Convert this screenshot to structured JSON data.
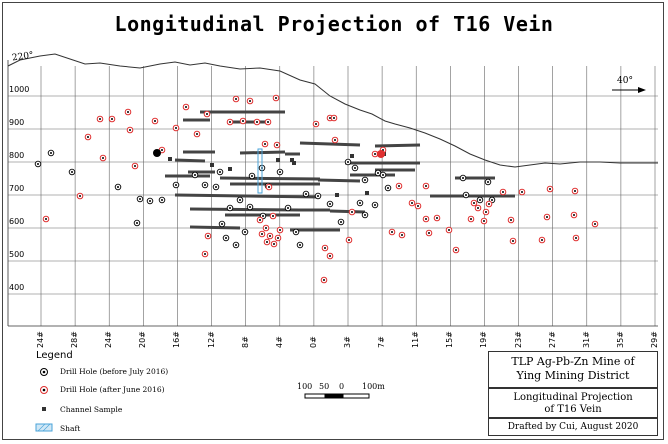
{
  "title": "Longitudinal Projection of T16 Vein",
  "orientation_label": "220°",
  "north_arrow_label": "40°",
  "elevations": [
    "1000",
    "900",
    "800",
    "700",
    "600",
    "500",
    "400"
  ],
  "sections": [
    "24#",
    "28#",
    "24#",
    "20#",
    "16#",
    "12#",
    "8#",
    "4#",
    "0#",
    "3#",
    "7#",
    "11#",
    "15#",
    "19#",
    "23#",
    "27#",
    "31#",
    "35#",
    "29#"
  ],
  "legend": {
    "title": "Legend",
    "items": [
      "Drill Hole (before July 2016)",
      "Drill Hole (after June 2016)",
      "Channel Sample",
      "Shaft"
    ]
  },
  "scale": {
    "labels": [
      "100",
      "50",
      "0",
      "100m"
    ]
  },
  "title_block": {
    "line1": "TLP Ag-Pb-Zn Mine of",
    "line2": "Ying Mining District",
    "line3": "Longitudinal Projection",
    "line4": "of T16 Vein",
    "drafted": "Drafted by Cui, August 2020"
  },
  "colors": {
    "red_hole": "#e03030",
    "line": "#333333",
    "shaft": "#4aa3d8"
  }
}
